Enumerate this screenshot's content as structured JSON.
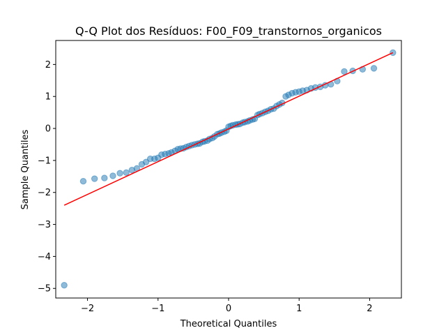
{
  "chart_data": {
    "type": "scatter",
    "title": "Q-Q Plot dos Resíduos: F00_F09_transtornos_organicos",
    "xlabel": "Theoretical Quantiles",
    "ylabel": "Sample Quantiles",
    "xlim": [
      -2.45,
      2.45
    ],
    "ylim": [
      -5.3,
      2.75
    ],
    "xticks": [
      -2,
      -1,
      0,
      1,
      2
    ],
    "xtick_labels": [
      "−2",
      "−1",
      "0",
      "1",
      "2"
    ],
    "yticks": [
      -5,
      -4,
      -3,
      -2,
      -1,
      0,
      1,
      2
    ],
    "ytick_labels": [
      "−5",
      "−4",
      "−3",
      "−2",
      "−1",
      "0",
      "1",
      "2"
    ],
    "grid": false,
    "colors": {
      "points": "#1f77b4",
      "line": "#ff0000"
    },
    "reference_line": {
      "x": [
        -2.33,
        2.33
      ],
      "y": [
        -2.4,
        2.37
      ]
    },
    "series": [
      {
        "x": [
          -2.33,
          -2.06,
          -1.9,
          -1.76,
          -1.64,
          -1.54,
          -1.45,
          -1.37,
          -1.3,
          -1.23,
          -1.17,
          -1.11,
          -1.05,
          -1.0,
          -0.95,
          -0.9,
          -0.85,
          -0.81,
          -0.76,
          -0.72,
          -0.68,
          -0.64,
          -0.6,
          -0.56,
          -0.52,
          -0.48,
          -0.44,
          -0.41,
          -0.37,
          -0.34,
          -0.3,
          -0.27,
          -0.23,
          -0.2,
          -0.16,
          -0.13,
          -0.1,
          -0.06,
          -0.03,
          0.0,
          0.03,
          0.06,
          0.1,
          0.13,
          0.16,
          0.2,
          0.23,
          0.27,
          0.3,
          0.34,
          0.37,
          0.41,
          0.44,
          0.48,
          0.52,
          0.56,
          0.6,
          0.64,
          0.68,
          0.72,
          0.76,
          0.81,
          0.85,
          0.9,
          0.95,
          1.0,
          1.05,
          1.11,
          1.17,
          1.23,
          1.3,
          1.37,
          1.45,
          1.54,
          1.64,
          1.76,
          1.9,
          2.06,
          2.33
        ],
        "y": [
          -4.9,
          -1.65,
          -1.57,
          -1.55,
          -1.48,
          -1.4,
          -1.38,
          -1.3,
          -1.25,
          -1.12,
          -1.05,
          -0.95,
          -0.95,
          -0.92,
          -0.82,
          -0.8,
          -0.78,
          -0.75,
          -0.7,
          -0.65,
          -0.63,
          -0.62,
          -0.58,
          -0.55,
          -0.52,
          -0.5,
          -0.48,
          -0.47,
          -0.42,
          -0.4,
          -0.38,
          -0.33,
          -0.3,
          -0.25,
          -0.18,
          -0.16,
          -0.13,
          -0.1,
          -0.07,
          0.05,
          0.08,
          0.1,
          0.12,
          0.13,
          0.14,
          0.18,
          0.2,
          0.22,
          0.25,
          0.28,
          0.3,
          0.42,
          0.45,
          0.48,
          0.52,
          0.55,
          0.6,
          0.62,
          0.7,
          0.75,
          0.8,
          1.0,
          1.05,
          1.1,
          1.13,
          1.15,
          1.18,
          1.2,
          1.25,
          1.28,
          1.3,
          1.35,
          1.38,
          1.48,
          1.78,
          1.8,
          1.85,
          1.88,
          2.37
        ]
      }
    ]
  }
}
